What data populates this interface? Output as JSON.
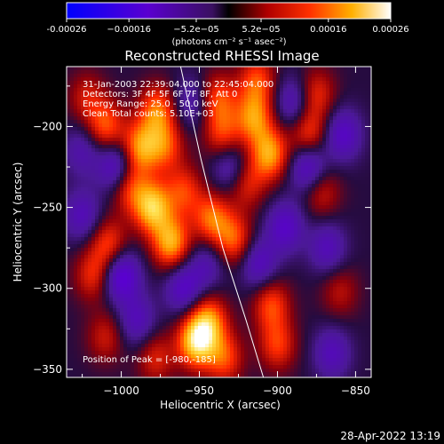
{
  "chart_data": {
    "type": "heatmap",
    "title": "Reconstructed RHESSI Image",
    "xlabel": "Heliocentric X (arcsec)",
    "ylabel": "Heliocentric Y (arcsec)",
    "xlim": [
      -1035,
      -840
    ],
    "ylim": [
      -355,
      -163
    ],
    "xticks": [
      {
        "value": -1000,
        "label": "−1000"
      },
      {
        "value": -950,
        "label": "−950"
      },
      {
        "value": -900,
        "label": "−900"
      },
      {
        "value": -850,
        "label": "−850"
      }
    ],
    "yticks": [
      {
        "value": -200,
        "label": "−200"
      },
      {
        "value": -250,
        "label": "−250"
      },
      {
        "value": -300,
        "label": "−300"
      },
      {
        "value": -350,
        "label": "−350"
      }
    ],
    "colorbar": {
      "range": [
        -0.00026,
        0.00026
      ],
      "ticks": [
        {
          "value": -0.00026,
          "label": "-0.00026"
        },
        {
          "value": -0.00016,
          "label": "−0.00016"
        },
        {
          "value": -5.2e-05,
          "label": "−5.2e−05"
        },
        {
          "value": 5.2e-05,
          "label": "5.2e−05"
        },
        {
          "value": 0.00016,
          "label": "0.00016"
        },
        {
          "value": 0.00026,
          "label": "0.00026"
        }
      ],
      "units_label": "(photons cm⁻² s⁻¹ asec⁻²)"
    },
    "info_lines": [
      "31-Jan-2003 22:39:04.000 to 22:45:04.000",
      "Detectors: 3F 4F 5F 6F 7F 8F, Att 0",
      "Energy Range: 25.0 - 50.0 keV",
      "Clean    Total counts: 5.10E+03"
    ],
    "peak_text": "Position of Peak = [-980,-185]",
    "limb_curve": [
      [
        -962,
        -163
      ],
      [
        -949,
        -220
      ],
      [
        -935,
        -275
      ],
      [
        -920,
        -320
      ],
      [
        -909,
        -355
      ]
    ],
    "blobs": [
      {
        "x": -1010,
        "y": -200,
        "v": 0.00013
      },
      {
        "x": -995,
        "y": -237,
        "v": 0.00012
      },
      {
        "x": -988,
        "y": -213,
        "v": 0.00016
      },
      {
        "x": -980,
        "y": -250,
        "v": 0.0002
      },
      {
        "x": -977,
        "y": -190,
        "v": 0.00014
      },
      {
        "x": -968,
        "y": -272,
        "v": 0.00018
      },
      {
        "x": -960,
        "y": -240,
        "v": 0.00011
      },
      {
        "x": -972,
        "y": -212,
        "v": 0.00012
      },
      {
        "x": -938,
        "y": -183,
        "v": 0.00012
      },
      {
        "x": -935,
        "y": -205,
        "v": 0.00011
      },
      {
        "x": -915,
        "y": -195,
        "v": 0.00015
      },
      {
        "x": -905,
        "y": -217,
        "v": 0.00017
      },
      {
        "x": -913,
        "y": -172,
        "v": 0.00012
      },
      {
        "x": -920,
        "y": -235,
        "v": 0.0001
      },
      {
        "x": -942,
        "y": -257,
        "v": 0.00014
      },
      {
        "x": -928,
        "y": -270,
        "v": 0.00013
      },
      {
        "x": -944,
        "y": -320,
        "v": 0.00015
      },
      {
        "x": -952,
        "y": -333,
        "v": 0.00021
      },
      {
        "x": -934,
        "y": -343,
        "v": 0.00012
      },
      {
        "x": -904,
        "y": -310,
        "v": 0.00012
      },
      {
        "x": -900,
        "y": -335,
        "v": 0.00011
      },
      {
        "x": -880,
        "y": -205,
        "v": 0.00012
      },
      {
        "x": -872,
        "y": -240,
        "v": 9e-05
      },
      {
        "x": -875,
        "y": -180,
        "v": 0.0001
      },
      {
        "x": -1008,
        "y": -273,
        "v": 0.00012
      },
      {
        "x": -1018,
        "y": -292,
        "v": 0.0001
      },
      {
        "x": -1010,
        "y": -330,
        "v": 8e-05
      },
      {
        "x": -978,
        "y": -343,
        "v": 9e-05
      },
      {
        "x": -860,
        "y": -302,
        "v": 7e-05
      },
      {
        "x": -1022,
        "y": -182,
        "v": 8e-05
      },
      {
        "x": -1003,
        "y": -225,
        "v": -0.00014
      },
      {
        "x": -1000,
        "y": -292,
        "v": -0.00016
      },
      {
        "x": -1025,
        "y": -255,
        "v": -0.0001
      },
      {
        "x": -960,
        "y": -300,
        "v": -0.00012
      },
      {
        "x": -930,
        "y": -225,
        "v": -0.0001
      },
      {
        "x": -912,
        "y": -285,
        "v": -0.00011
      },
      {
        "x": -895,
        "y": -262,
        "v": -0.00012
      },
      {
        "x": -880,
        "y": -225,
        "v": -0.00014
      },
      {
        "x": -858,
        "y": -205,
        "v": -0.00012
      },
      {
        "x": -868,
        "y": -275,
        "v": -0.0001
      },
      {
        "x": -865,
        "y": -340,
        "v": -0.0001
      },
      {
        "x": -955,
        "y": -185,
        "v": -8e-05
      },
      {
        "x": -1025,
        "y": -215,
        "v": -8e-05
      },
      {
        "x": -990,
        "y": -320,
        "v": -0.0001
      },
      {
        "x": -890,
        "y": -185,
        "v": -0.0001
      },
      {
        "x": -945,
        "y": -285,
        "v": -8e-05
      }
    ]
  },
  "footer_timestamp": "28-Apr-2022 13:19"
}
